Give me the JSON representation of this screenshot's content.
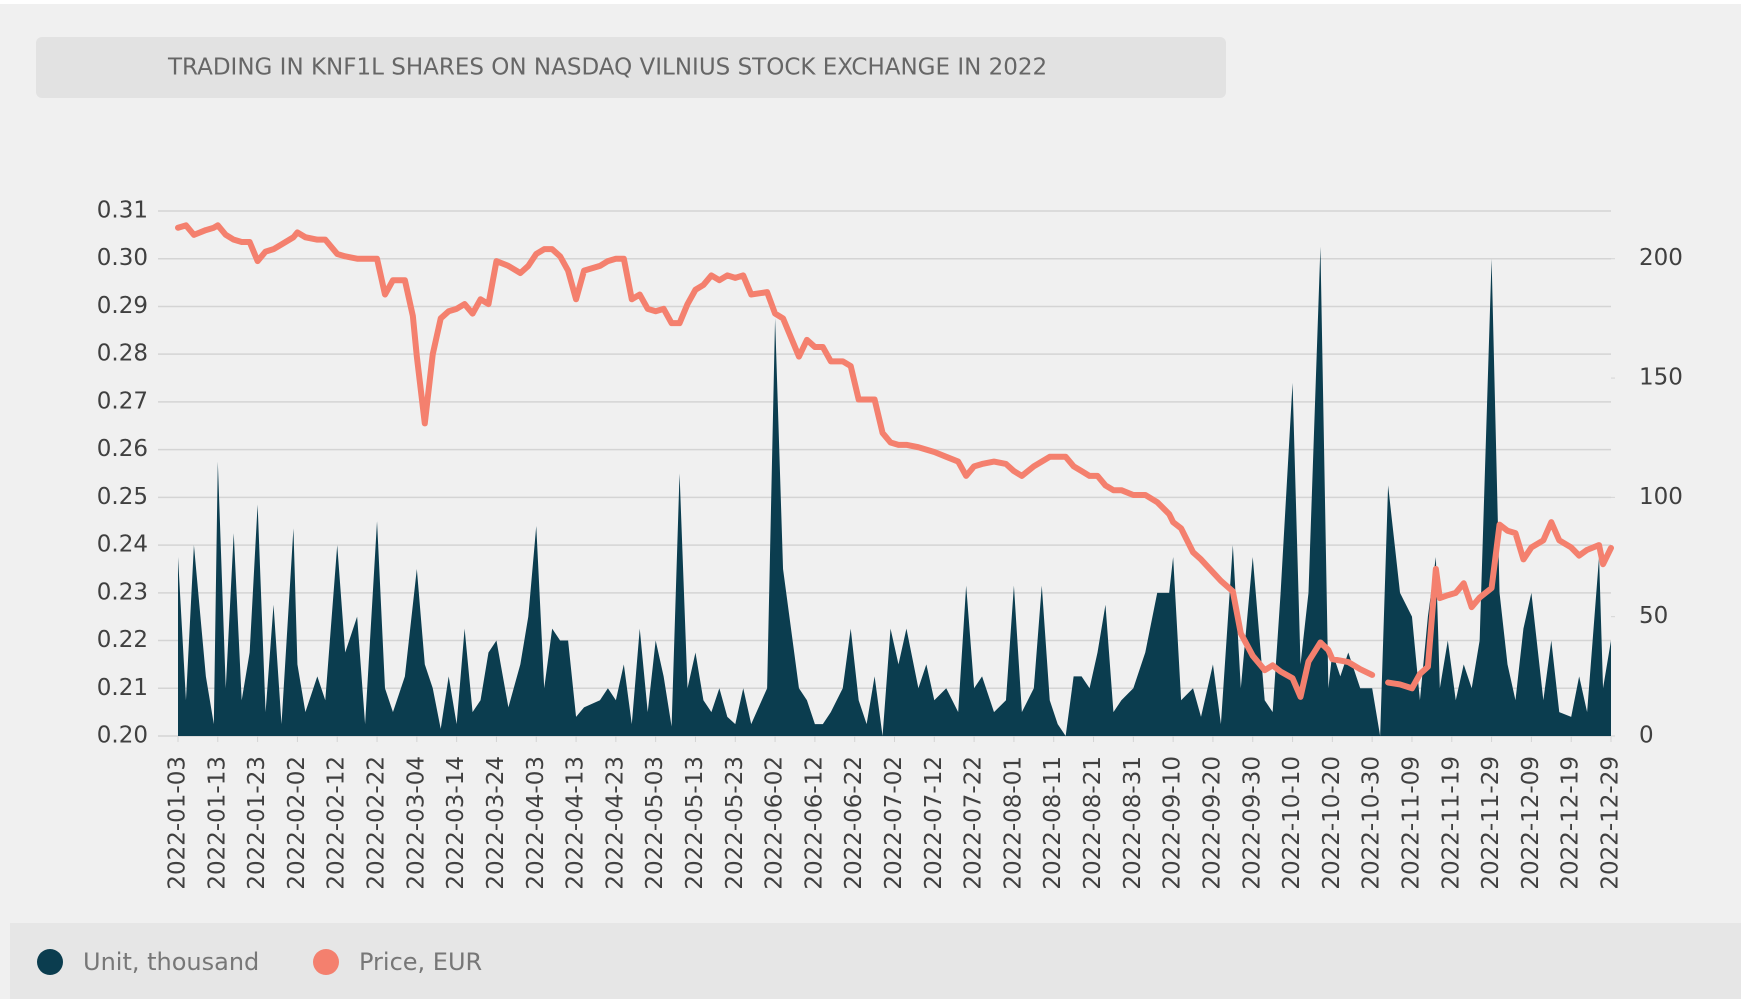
{
  "chart_data": {
    "type": "area-line",
    "title": "TRADING IN KNF1L SHARES ON NASDAQ VILNIUS STOCK EXCHANGE IN 2022",
    "x": [
      "2022-01-03",
      "2022-01-05",
      "2022-01-07",
      "2022-01-10",
      "2022-01-12",
      "2022-01-13",
      "2022-01-15",
      "2022-01-17",
      "2022-01-19",
      "2022-01-21",
      "2022-01-23",
      "2022-01-25",
      "2022-01-27",
      "2022-01-29",
      "2022-02-01",
      "2022-02-02",
      "2022-02-04",
      "2022-02-07",
      "2022-02-09",
      "2022-02-12",
      "2022-02-14",
      "2022-02-17",
      "2022-02-19",
      "2022-02-22",
      "2022-02-24",
      "2022-02-26",
      "2022-03-01",
      "2022-03-03",
      "2022-03-04",
      "2022-03-06",
      "2022-03-08",
      "2022-03-10",
      "2022-03-12",
      "2022-03-14",
      "2022-03-16",
      "2022-03-18",
      "2022-03-20",
      "2022-03-22",
      "2022-03-24",
      "2022-03-27",
      "2022-03-30",
      "2022-04-01",
      "2022-04-03",
      "2022-04-05",
      "2022-04-07",
      "2022-04-09",
      "2022-04-11",
      "2022-04-13",
      "2022-04-15",
      "2022-04-19",
      "2022-04-21",
      "2022-04-23",
      "2022-04-25",
      "2022-04-27",
      "2022-04-29",
      "2022-05-01",
      "2022-05-03",
      "2022-05-05",
      "2022-05-07",
      "2022-05-09",
      "2022-05-11",
      "2022-05-13",
      "2022-05-15",
      "2022-05-17",
      "2022-05-19",
      "2022-05-21",
      "2022-05-23",
      "2022-05-25",
      "2022-05-27",
      "2022-05-31",
      "2022-06-02",
      "2022-06-04",
      "2022-06-06",
      "2022-06-08",
      "2022-06-10",
      "2022-06-12",
      "2022-06-14",
      "2022-06-16",
      "2022-06-19",
      "2022-06-21",
      "2022-06-23",
      "2022-06-25",
      "2022-06-27",
      "2022-06-29",
      "2022-07-01",
      "2022-07-03",
      "2022-07-05",
      "2022-07-08",
      "2022-07-10",
      "2022-07-12",
      "2022-07-15",
      "2022-07-18",
      "2022-07-20",
      "2022-07-22",
      "2022-07-24",
      "2022-07-27",
      "2022-07-30",
      "2022-08-01",
      "2022-08-03",
      "2022-08-06",
      "2022-08-08",
      "2022-08-10",
      "2022-08-12",
      "2022-08-14",
      "2022-08-16",
      "2022-08-18",
      "2022-08-20",
      "2022-08-22",
      "2022-08-24",
      "2022-08-26",
      "2022-08-28",
      "2022-08-31",
      "2022-09-03",
      "2022-09-06",
      "2022-09-09",
      "2022-09-10",
      "2022-09-12",
      "2022-09-15",
      "2022-09-17",
      "2022-09-20",
      "2022-09-22",
      "2022-09-25",
      "2022-09-27",
      "2022-09-30",
      "2022-10-03",
      "2022-10-05",
      "2022-10-07",
      "2022-10-10",
      "2022-10-12",
      "2022-10-14",
      "2022-10-17",
      "2022-10-19",
      "2022-10-20",
      "2022-10-22",
      "2022-10-24",
      "2022-10-27",
      "2022-10-30",
      "2022-11-01",
      "2022-11-03",
      "2022-11-06",
      "2022-11-09",
      "2022-11-11",
      "2022-11-13",
      "2022-11-15",
      "2022-11-16",
      "2022-11-18",
      "2022-11-20",
      "2022-11-22",
      "2022-11-24",
      "2022-11-26",
      "2022-11-29",
      "2022-12-01",
      "2022-12-03",
      "2022-12-05",
      "2022-12-07",
      "2022-12-09",
      "2022-12-12",
      "2022-12-14",
      "2022-12-16",
      "2022-12-19",
      "2022-12-21",
      "2022-12-23",
      "2022-12-26",
      "2022-12-27",
      "2022-12-29"
    ],
    "series": [
      {
        "name": "Unit, thousand",
        "color": "#0b3d4f",
        "axis": "y2",
        "kind": "area",
        "values": [
          75,
          15,
          80,
          25,
          5,
          115,
          20,
          85,
          15,
          35,
          97,
          10,
          55,
          5,
          87,
          30,
          10,
          25,
          15,
          80,
          35,
          50,
          5,
          90,
          20,
          10,
          25,
          55,
          70,
          30,
          20,
          3,
          25,
          5,
          45,
          10,
          15,
          35,
          40,
          12,
          30,
          50,
          88,
          20,
          45,
          40,
          40,
          8,
          12,
          15,
          20,
          15,
          30,
          5,
          45,
          10,
          40,
          25,
          4,
          110,
          20,
          35,
          15,
          10,
          20,
          8,
          5,
          20,
          5,
          20,
          175,
          70,
          45,
          20,
          15,
          5,
          5,
          10,
          20,
          45,
          15,
          5,
          25,
          0,
          45,
          30,
          45,
          20,
          30,
          15,
          20,
          10,
          63,
          20,
          25,
          10,
          15,
          63,
          10,
          20,
          63,
          15,
          5,
          0,
          25,
          25,
          20,
          35,
          55,
          10,
          15,
          20,
          35,
          60,
          60,
          75,
          15,
          20,
          8,
          30,
          5,
          80,
          20,
          75,
          15,
          10,
          60,
          148,
          30,
          60,
          205,
          20,
          35,
          25,
          35,
          20,
          20,
          0,
          105,
          60,
          50,
          15,
          50,
          75,
          20,
          40,
          15,
          30,
          20,
          40,
          200,
          60,
          30,
          15,
          45,
          60,
          15,
          40,
          10,
          8,
          25,
          10,
          75,
          20,
          40
        ]
      },
      {
        "name": "Price, EUR",
        "color": "#f4806e",
        "kind": "line",
        "values": [
          0.3065,
          0.307,
          0.305,
          0.306,
          0.3065,
          0.307,
          0.305,
          0.304,
          0.3035,
          0.3035,
          0.2995,
          0.3015,
          0.302,
          0.303,
          0.3045,
          0.3055,
          0.3045,
          0.304,
          0.304,
          0.301,
          0.3005,
          0.3,
          0.3,
          0.3,
          0.2925,
          0.2955,
          0.2955,
          0.288,
          0.2795,
          0.2655,
          0.28,
          0.2875,
          0.289,
          0.2895,
          0.2905,
          0.2885,
          0.2915,
          0.2905,
          0.2995,
          0.2985,
          0.297,
          0.2985,
          0.301,
          0.302,
          0.302,
          0.3005,
          0.2975,
          0.2915,
          0.2975,
          0.2985,
          0.2995,
          0.3,
          0.3,
          0.2915,
          0.2925,
          0.2895,
          0.289,
          0.2895,
          0.2865,
          0.2865,
          0.2905,
          0.2935,
          0.2945,
          0.2965,
          0.2955,
          0.2965,
          0.296,
          0.2965,
          0.2925,
          0.293,
          0.2885,
          0.2875,
          0.2835,
          0.2795,
          0.283,
          0.2815,
          0.2815,
          0.2785,
          0.2785,
          0.2775,
          0.2705,
          0.2705,
          0.2705,
          0.2635,
          0.2615,
          0.261,
          0.261,
          0.2605,
          0.26,
          0.2595,
          0.2585,
          0.2575,
          0.2545,
          0.2565,
          0.257,
          0.2575,
          0.257,
          0.2555,
          0.2545,
          0.2565,
          0.2575,
          0.2585,
          0.2585,
          0.2585,
          0.2565,
          0.2555,
          0.2545,
          0.2545,
          0.2525,
          0.2515,
          0.2515,
          0.2505,
          0.2505,
          0.249,
          0.2465,
          0.2448,
          0.2435,
          0.2385,
          0.237,
          0.2343,
          0.2325,
          0.2303,
          0.2215,
          0.2168,
          0.2138,
          0.2148,
          0.2135,
          0.2121,
          0.2082,
          0.2156,
          0.2196,
          0.218,
          0.2161,
          0.2158,
          0.2155,
          0.214,
          0.2128,
          null,
          0.2112,
          0.2108,
          0.21,
          0.213,
          0.2145,
          0.235,
          0.2289,
          0.2295,
          0.23,
          0.232,
          0.227,
          0.229,
          0.231,
          0.2443,
          0.243,
          0.2425,
          0.237,
          0.2395,
          0.241,
          0.2448,
          0.241,
          0.2395,
          0.2378,
          0.239,
          0.24,
          0.236,
          0.2394
        ]
      }
    ],
    "xlim": [
      "2022-01-03",
      "2022-12-29"
    ],
    "xticks": [
      "2022-01-03",
      "2022-01-13",
      "2022-01-23",
      "2022-02-02",
      "2022-02-12",
      "2022-02-22",
      "2022-03-04",
      "2022-03-14",
      "2022-03-24",
      "2022-04-03",
      "2022-04-13",
      "2022-04-23",
      "2022-05-03",
      "2022-05-13",
      "2022-05-23",
      "2022-06-02",
      "2022-06-12",
      "2022-06-22",
      "2022-07-02",
      "2022-07-12",
      "2022-07-22",
      "2022-08-01",
      "2022-08-11",
      "2022-08-21",
      "2022-08-31",
      "2022-09-10",
      "2022-09-20",
      "2022-09-30",
      "2022-10-10",
      "2022-10-20",
      "2022-10-30",
      "2022-11-09",
      "2022-11-19",
      "2022-11-29",
      "2022-12-09",
      "2022-12-19",
      "2022-12-29"
    ],
    "ylim": [
      0.2,
      0.31
    ],
    "yticks": [
      {
        "value": 0.2,
        "label": "0.20"
      },
      0.21,
      0.22,
      0.23,
      0.24,
      0.25,
      0.26,
      0.27,
      0.28,
      0.29,
      {
        "value": 0.3,
        "label": "0.30"
      },
      0.31
    ],
    "y2lim": [
      0,
      220
    ],
    "y2ticks": [
      0,
      50,
      100,
      150,
      200
    ],
    "grid": true,
    "legend": "bottom-left"
  }
}
